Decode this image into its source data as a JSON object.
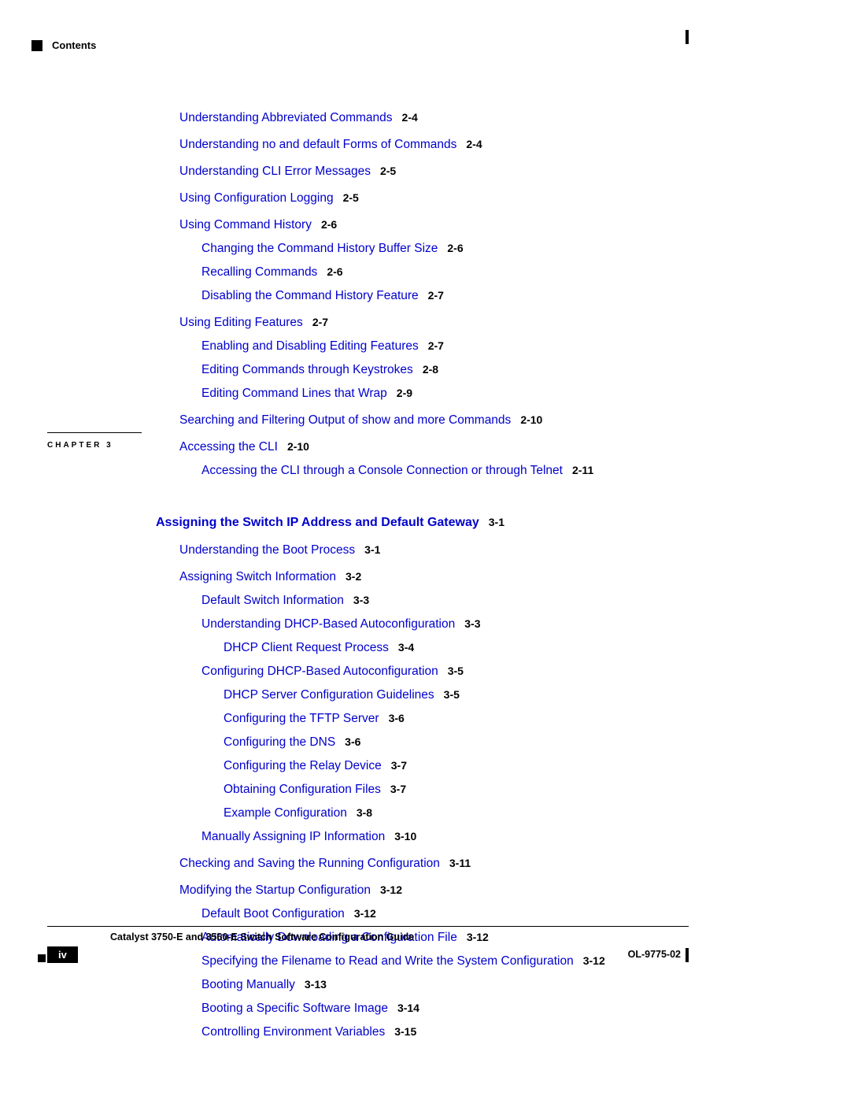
{
  "header": {
    "label": "Contents"
  },
  "chapter3_label": "CHAPTER 3",
  "section1": [
    {
      "lvl": 0,
      "text": "Understanding Abbreviated Commands",
      "page": "2-4"
    },
    {
      "lvl": 0,
      "text": "Understanding no and default Forms of Commands",
      "page": "2-4",
      "gap": true
    },
    {
      "lvl": 0,
      "text": "Understanding CLI Error Messages",
      "page": "2-5",
      "gap": true
    },
    {
      "lvl": 0,
      "text": "Using Configuration Logging",
      "page": "2-5",
      "gap": true
    },
    {
      "lvl": 0,
      "text": "Using Command History",
      "page": "2-6",
      "gap": true
    },
    {
      "lvl": 1,
      "text": "Changing the Command History Buffer Size",
      "page": "2-6"
    },
    {
      "lvl": 1,
      "text": "Recalling Commands",
      "page": "2-6"
    },
    {
      "lvl": 1,
      "text": "Disabling the Command History Feature",
      "page": "2-7"
    },
    {
      "lvl": 0,
      "text": "Using Editing Features",
      "page": "2-7",
      "gap": true
    },
    {
      "lvl": 1,
      "text": "Enabling and Disabling Editing Features",
      "page": "2-7"
    },
    {
      "lvl": 1,
      "text": "Editing Commands through Keystrokes",
      "page": "2-8"
    },
    {
      "lvl": 1,
      "text": "Editing Command Lines that Wrap",
      "page": "2-9"
    },
    {
      "lvl": 0,
      "text": "Searching and Filtering Output of show and more Commands",
      "page": "2-10",
      "gap": true
    },
    {
      "lvl": 0,
      "text": "Accessing the CLI",
      "page": "2-10",
      "gap": true
    },
    {
      "lvl": 1,
      "text": "Accessing the CLI through a Console Connection or through Telnet",
      "page": "2-11"
    }
  ],
  "chapter3": {
    "title": "Assigning the Switch IP Address and Default Gateway",
    "page": "3-1",
    "entries": [
      {
        "lvl": 0,
        "text": "Understanding the Boot Process",
        "page": "3-1",
        "gap": true
      },
      {
        "lvl": 0,
        "text": "Assigning Switch Information",
        "page": "3-2",
        "gap": true
      },
      {
        "lvl": 1,
        "text": "Default Switch Information",
        "page": "3-3"
      },
      {
        "lvl": 1,
        "text": "Understanding DHCP-Based Autoconfiguration",
        "page": "3-3"
      },
      {
        "lvl": 2,
        "text": "DHCP Client Request Process",
        "page": "3-4"
      },
      {
        "lvl": 1,
        "text": "Configuring DHCP-Based Autoconfiguration",
        "page": "3-5"
      },
      {
        "lvl": 2,
        "text": "DHCP Server Configuration Guidelines",
        "page": "3-5"
      },
      {
        "lvl": 2,
        "text": "Configuring the TFTP Server",
        "page": "3-6"
      },
      {
        "lvl": 2,
        "text": "Configuring the DNS",
        "page": "3-6"
      },
      {
        "lvl": 2,
        "text": "Configuring the Relay Device",
        "page": "3-7"
      },
      {
        "lvl": 2,
        "text": "Obtaining Configuration Files",
        "page": "3-7"
      },
      {
        "lvl": 2,
        "text": "Example Configuration",
        "page": "3-8"
      },
      {
        "lvl": 1,
        "text": "Manually Assigning IP Information",
        "page": "3-10"
      },
      {
        "lvl": 0,
        "text": "Checking and Saving the Running Configuration",
        "page": "3-11",
        "gap": true
      },
      {
        "lvl": 0,
        "text": "Modifying the Startup Configuration",
        "page": "3-12",
        "gap": true
      },
      {
        "lvl": 1,
        "text": "Default Boot Configuration",
        "page": "3-12"
      },
      {
        "lvl": 1,
        "text": "Automatically Downloading a Configuration File",
        "page": "3-12"
      },
      {
        "lvl": 1,
        "text": "Specifying the Filename to Read and Write the System Configuration",
        "page": "3-12"
      },
      {
        "lvl": 1,
        "text": "Booting Manually",
        "page": "3-13"
      },
      {
        "lvl": 1,
        "text": "Booting a Specific Software Image",
        "page": "3-14"
      },
      {
        "lvl": 1,
        "text": "Controlling Environment Variables",
        "page": "3-15"
      }
    ]
  },
  "footer": {
    "guide_title": "Catalyst 3750-E and 3560-E Switch Software Configuration Guide",
    "page_num": "iv",
    "doc_id": "OL-9775-02"
  }
}
